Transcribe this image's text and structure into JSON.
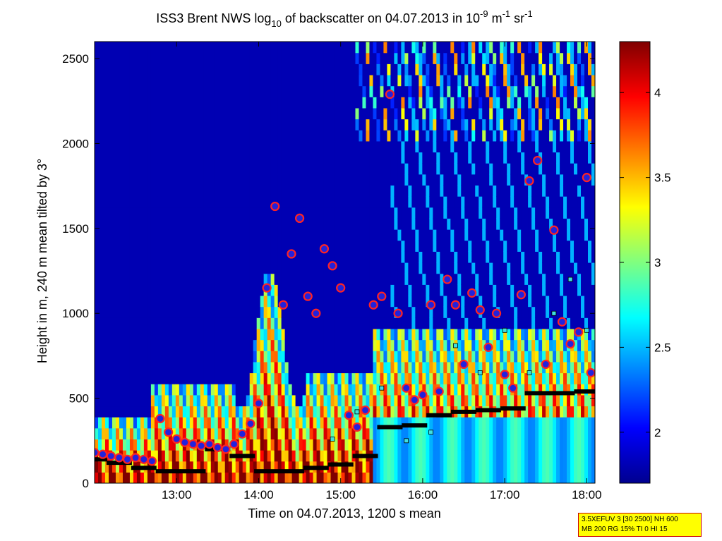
{
  "chart_data": {
    "type": "heatmap",
    "title_parts": {
      "prefix": "ISS3 Brent NWS log",
      "sub": "10",
      "middle": " of backscatter on 04.07.2013 in 10",
      "sup1": "-9",
      "unit1": " m",
      "sup2": "-1",
      "unit2": " sr",
      "sup3": "-1"
    },
    "xlabel": "Time on 04.07.2013, 1200 s mean",
    "ylabel": "Height in m, 240 m mean tilted by 3°",
    "x_ticks": [
      "13:00",
      "14:00",
      "15:00",
      "16:00",
      "17:00",
      "18:00"
    ],
    "x_tick_hours": [
      13,
      14,
      15,
      16,
      17,
      18
    ],
    "xlim_hours": [
      12.0,
      18.1
    ],
    "y_ticks": [
      0,
      500,
      1000,
      1500,
      2000,
      2500
    ],
    "ylim": [
      0,
      2600
    ],
    "colorbar": {
      "ticks": [
        2,
        2.5,
        3,
        3.5,
        4
      ],
      "tick_labels": [
        "2",
        "2.5",
        "3",
        "3.5",
        "4"
      ],
      "range": [
        1.7,
        4.3
      ],
      "colormap": "jet"
    },
    "series": [
      {
        "marker": "red-ringed blue circle",
        "points": [
          [
            12.0,
            180
          ],
          [
            12.1,
            170
          ],
          [
            12.2,
            160
          ],
          [
            12.3,
            150
          ],
          [
            12.4,
            140
          ],
          [
            12.5,
            150
          ],
          [
            12.6,
            140
          ],
          [
            12.7,
            130
          ],
          [
            12.8,
            380
          ],
          [
            12.9,
            300
          ],
          [
            13.0,
            260
          ],
          [
            13.1,
            240
          ],
          [
            13.2,
            230
          ],
          [
            13.3,
            220
          ],
          [
            13.4,
            230
          ],
          [
            13.5,
            210
          ],
          [
            13.6,
            200
          ],
          [
            13.7,
            230
          ],
          [
            13.8,
            290
          ],
          [
            13.9,
            350
          ],
          [
            14.0,
            470
          ],
          [
            14.1,
            1150
          ],
          [
            14.2,
            1630
          ],
          [
            14.3,
            1050
          ],
          [
            14.4,
            1350
          ],
          [
            14.5,
            1560
          ],
          [
            14.6,
            1100
          ],
          [
            14.7,
            1000
          ],
          [
            14.8,
            1380
          ],
          [
            14.9,
            1280
          ],
          [
            15.0,
            1150
          ],
          [
            15.1,
            400
          ],
          [
            15.2,
            330
          ],
          [
            15.3,
            430
          ],
          [
            15.4,
            1050
          ],
          [
            15.5,
            1100
          ],
          [
            15.6,
            2290
          ],
          [
            15.7,
            1000
          ],
          [
            15.8,
            560
          ],
          [
            15.9,
            490
          ],
          [
            16.0,
            520
          ],
          [
            16.1,
            1050
          ],
          [
            16.2,
            540
          ],
          [
            16.3,
            1200
          ],
          [
            16.4,
            1050
          ],
          [
            16.5,
            700
          ],
          [
            16.6,
            1120
          ],
          [
            16.7,
            1020
          ],
          [
            16.8,
            800
          ],
          [
            16.9,
            1000
          ],
          [
            17.0,
            640
          ],
          [
            17.1,
            560
          ],
          [
            17.2,
            1110
          ],
          [
            17.3,
            1780
          ],
          [
            17.4,
            1900
          ],
          [
            17.5,
            700
          ],
          [
            17.6,
            1490
          ],
          [
            17.7,
            950
          ],
          [
            17.8,
            820
          ],
          [
            17.9,
            890
          ],
          [
            18.0,
            1800
          ],
          [
            18.05,
            650
          ]
        ]
      },
      {
        "marker": "black bar",
        "points": [
          [
            12.0,
            140
          ],
          [
            12.3,
            120
          ],
          [
            12.6,
            90
          ],
          [
            12.9,
            70
          ],
          [
            13.2,
            70
          ],
          [
            13.5,
            200
          ],
          [
            13.8,
            160
          ],
          [
            14.1,
            70
          ],
          [
            14.4,
            70
          ],
          [
            14.7,
            90
          ],
          [
            15.0,
            110
          ],
          [
            15.3,
            160
          ],
          [
            15.6,
            330
          ],
          [
            15.9,
            340
          ],
          [
            16.2,
            400
          ],
          [
            16.5,
            420
          ],
          [
            16.8,
            430
          ],
          [
            17.1,
            440
          ],
          [
            17.4,
            530
          ],
          [
            17.7,
            530
          ],
          [
            18.0,
            540
          ]
        ]
      },
      {
        "marker": "cyan square",
        "points": [
          [
            14.9,
            260
          ],
          [
            15.2,
            420
          ],
          [
            15.5,
            560
          ],
          [
            15.8,
            250
          ],
          [
            16.1,
            300
          ],
          [
            16.4,
            810
          ],
          [
            16.7,
            650
          ],
          [
            17.0,
            900
          ],
          [
            17.3,
            650
          ],
          [
            17.6,
            1000
          ],
          [
            17.8,
            1200
          ],
          [
            18.0,
            900
          ]
        ]
      }
    ]
  },
  "info_box": {
    "line1": "3.5XEFUV 3 [30 2500] NH 600",
    "line2": "MB 200 RG 15% TI 0 HI 15"
  }
}
